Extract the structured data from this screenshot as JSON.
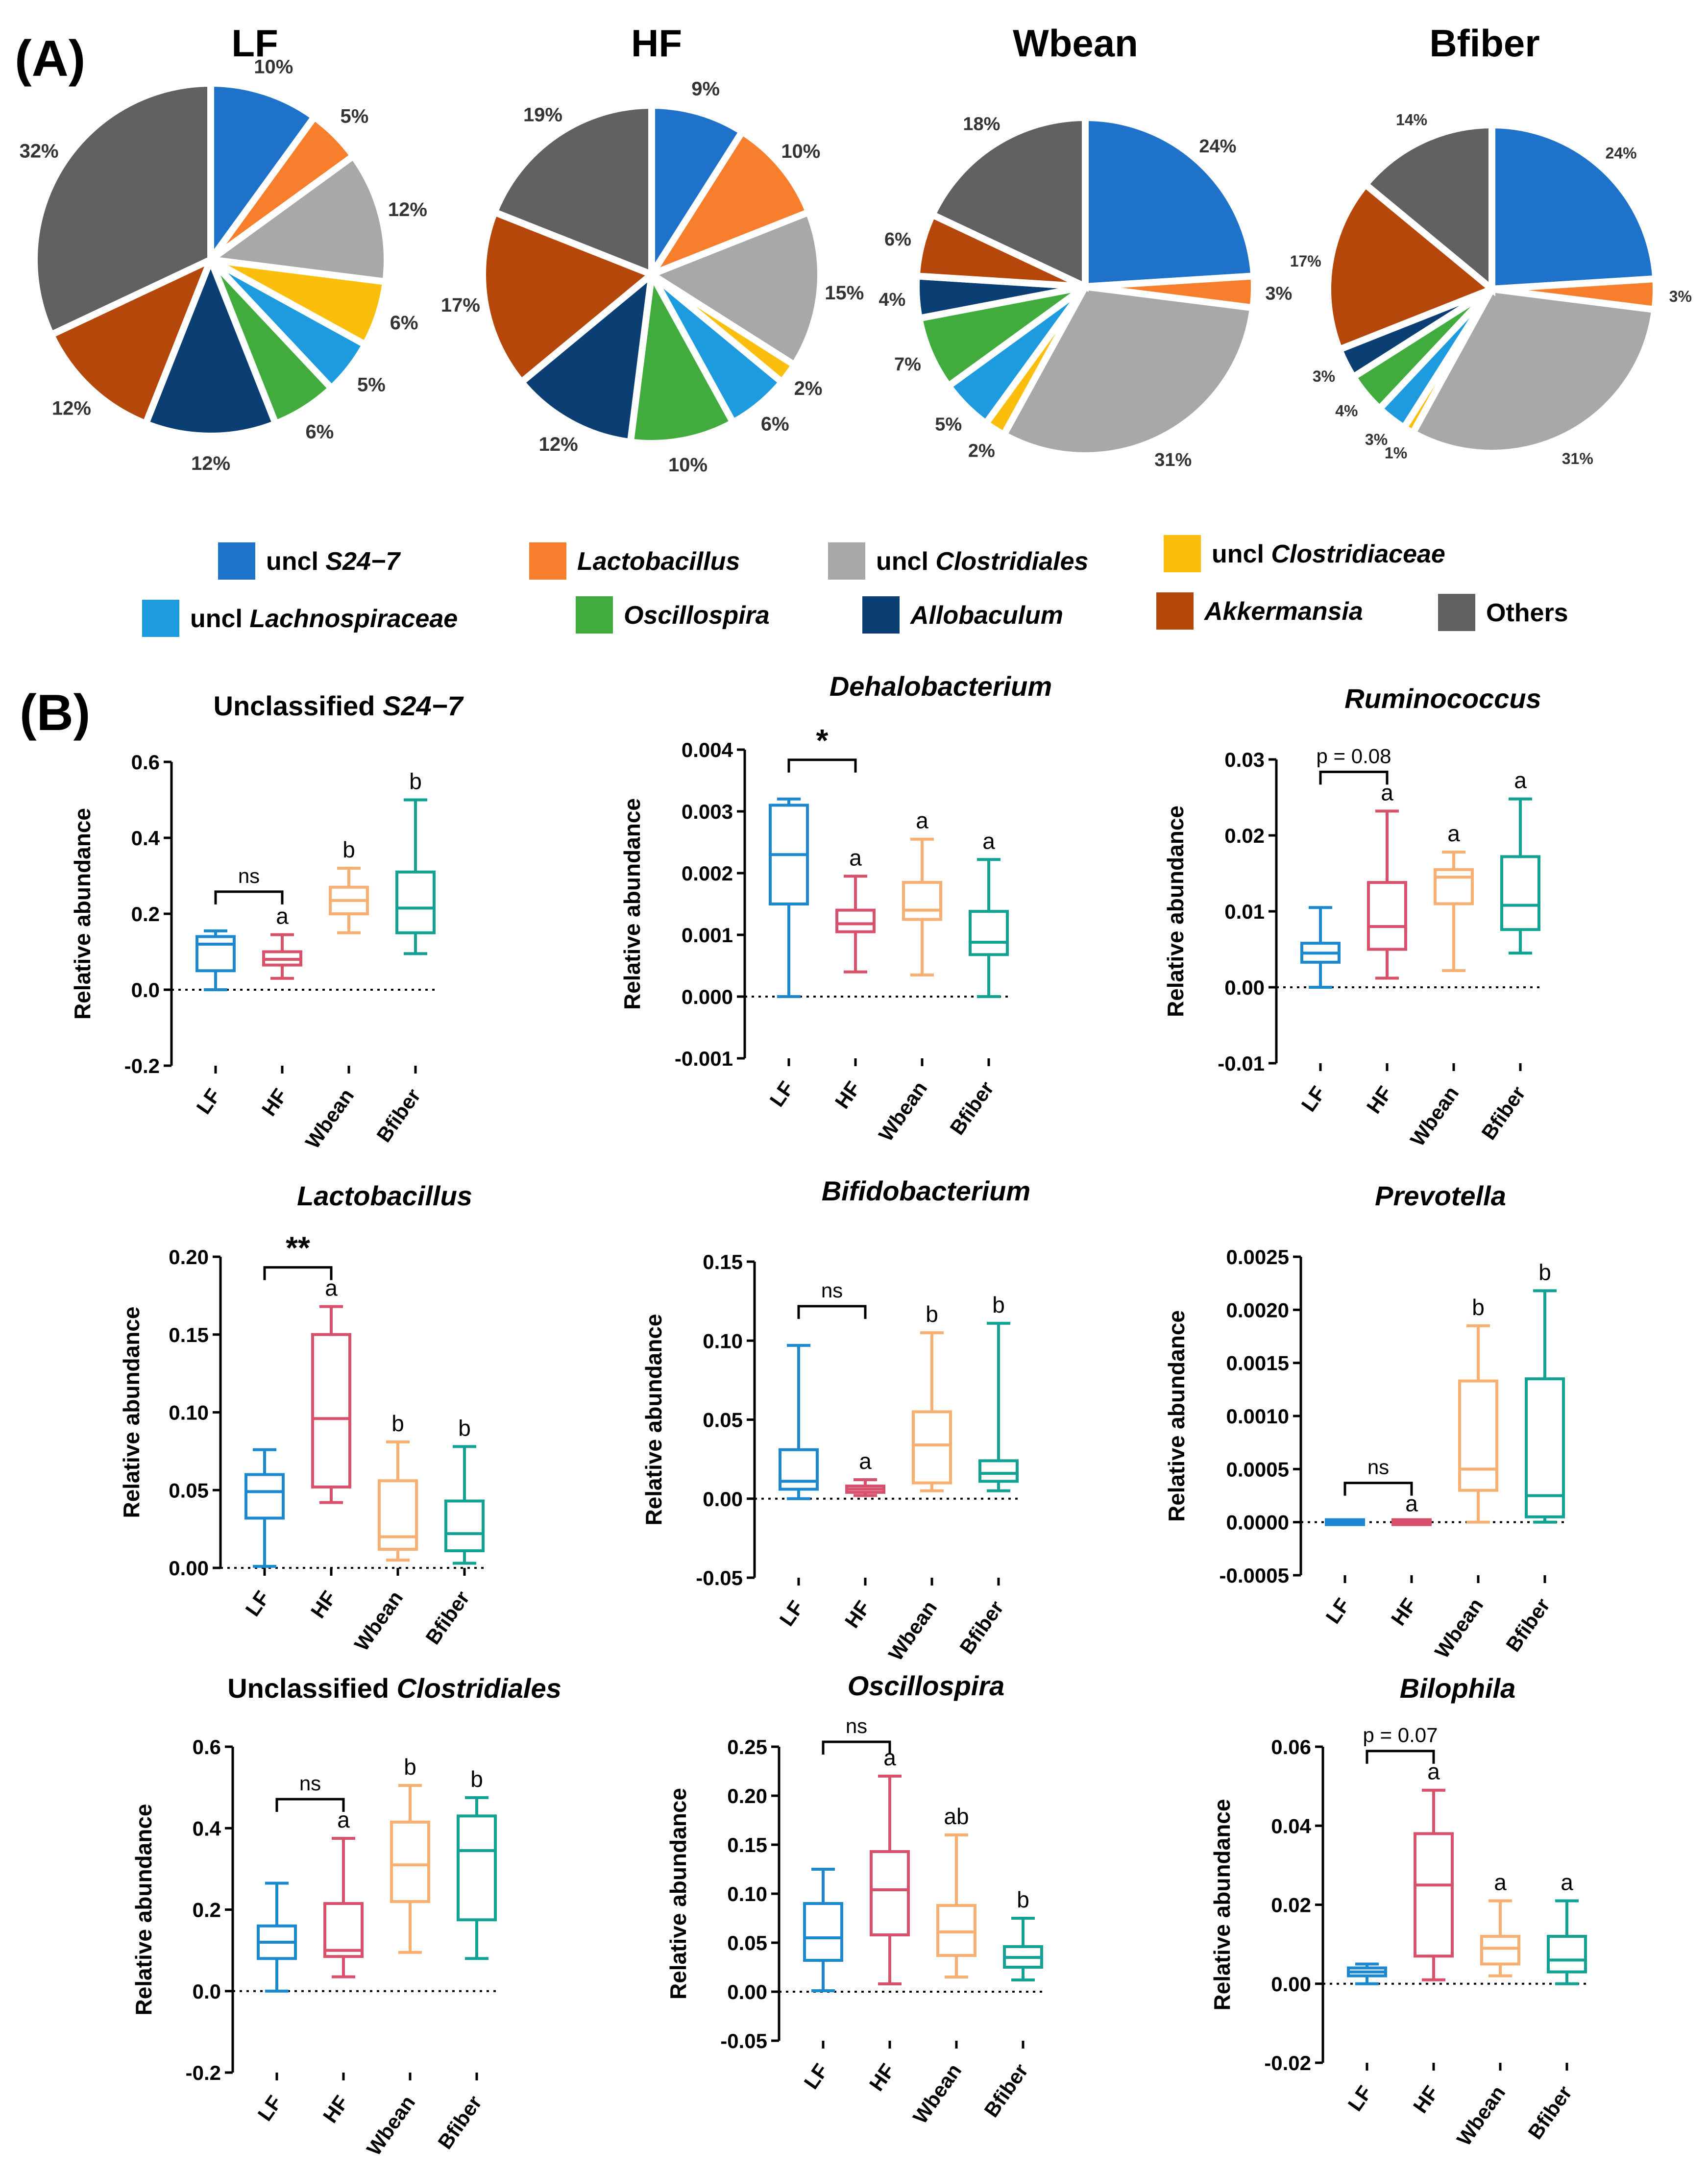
{
  "panel_labels": {
    "a": "(A)",
    "b": "(B)"
  },
  "legend": [
    {
      "pre": "uncl ",
      "name": "S24−7",
      "italic": true,
      "color": "#1F72CA"
    },
    {
      "pre": "",
      "name": "Lactobacillus",
      "italic": true,
      "color": "#F77E2D"
    },
    {
      "pre": "uncl ",
      "name": "Clostridiales",
      "italic": true,
      "color": "#A8A8A8"
    },
    {
      "pre": "uncl ",
      "name": "Clostridiaceae",
      "italic": true,
      "color": "#FCBE0C"
    },
    {
      "pre": "uncl ",
      "name": "Lachnospiraceae",
      "italic": true,
      "color": "#1E9ADE"
    },
    {
      "pre": "",
      "name": "Oscillospira",
      "italic": true,
      "color": "#41AB3E"
    },
    {
      "pre": "",
      "name": "Allobaculum",
      "italic": true,
      "color": "#0B3F74"
    },
    {
      "pre": "",
      "name": "Akkermansia",
      "italic": true,
      "color": "#B5470A"
    },
    {
      "pre": "",
      "name": "Others",
      "italic": false,
      "color": "#616161"
    }
  ],
  "chart_data": [
    {
      "type": "pie",
      "title": "LF",
      "categories": [
        "uncl S24−7",
        "Lactobacillus",
        "uncl Clostridiales",
        "uncl Clostridiaceae",
        "uncl Lachnospiraceae",
        "Oscillospira",
        "Allobaculum",
        "Akkermansia",
        "Others"
      ],
      "values": [
        10,
        5,
        12,
        6,
        5,
        6,
        12,
        12,
        32
      ],
      "labels": [
        "10%",
        "5%",
        "12%",
        "6%",
        "5%",
        "6%",
        "12%",
        "12%",
        "32%"
      ]
    },
    {
      "type": "pie",
      "title": "HF",
      "categories": [
        "uncl S24−7",
        "Lactobacillus",
        "uncl Clostridiales",
        "uncl Clostridiaceae",
        "uncl Lachnospiraceae",
        "Oscillospira",
        "Allobaculum",
        "Akkermansia",
        "Others"
      ],
      "values": [
        9,
        10,
        15,
        2,
        6,
        10,
        12,
        17,
        19
      ],
      "labels": [
        "9%",
        "10%",
        "15%",
        "2%",
        "6%",
        "10%",
        "12%",
        "17%",
        "19%"
      ]
    },
    {
      "type": "pie",
      "title": "Wbean",
      "categories": [
        "uncl S24−7",
        "Lactobacillus",
        "uncl Clostridiales",
        "uncl Clostridiaceae",
        "uncl Lachnospiraceae",
        "Oscillospira",
        "Allobaculum",
        "Akkermansia",
        "Others"
      ],
      "values": [
        24,
        3,
        31,
        2,
        5,
        7,
        4,
        6,
        18
      ],
      "labels": [
        "24%",
        "3%",
        "31%",
        "2%",
        "5%",
        "7%",
        "4%",
        "6%",
        "18%"
      ]
    },
    {
      "type": "pie",
      "title": "Bfiber",
      "categories": [
        "uncl S24−7",
        "Lactobacillus",
        "uncl Clostridiales",
        "uncl Clostridiaceae",
        "uncl Lachnospiraceae",
        "Oscillospira",
        "Allobaculum",
        "Akkermansia",
        "Others"
      ],
      "values": [
        24,
        3,
        31,
        1,
        3,
        4,
        3,
        17,
        14
      ],
      "labels": [
        "24%",
        "3%",
        "31%",
        "1%",
        "3%",
        "4%",
        "3%",
        "17%",
        "14%"
      ]
    },
    {
      "type": "box",
      "title_pre": "Unclassified ",
      "title_it": "S24−7",
      "ylabel": "Relative abundance",
      "categories": [
        "LF",
        "HF",
        "Wbean",
        "Bfiber"
      ],
      "ylim": [
        -0.2,
        0.6
      ],
      "yticks": [
        -0.2,
        0.0,
        0.2,
        0.4,
        0.6
      ],
      "ytick_labels": [
        "-0.2",
        "0.0",
        "0.2",
        "0.4",
        "0.6"
      ],
      "boxes": [
        {
          "min": 0.0,
          "q1": 0.05,
          "med": 0.12,
          "q3": 0.14,
          "max": 0.155
        },
        {
          "min": 0.03,
          "q1": 0.065,
          "med": 0.08,
          "q3": 0.1,
          "max": 0.145
        },
        {
          "min": 0.15,
          "q1": 0.2,
          "med": 0.235,
          "q3": 0.27,
          "max": 0.32
        },
        {
          "min": 0.095,
          "q1": 0.15,
          "med": 0.215,
          "q3": 0.31,
          "max": 0.5
        }
      ],
      "letters": [
        "",
        "a",
        "b",
        "b"
      ],
      "sig": "ns"
    },
    {
      "type": "box",
      "title_pre": "",
      "title_it": "Dehalobacterium",
      "ylabel": "Relative abundance",
      "categories": [
        "LF",
        "HF",
        "Wbean",
        "Bfiber"
      ],
      "ylim": [
        -0.001,
        0.004
      ],
      "yticks": [
        -0.001,
        0,
        0.001,
        0.002,
        0.003,
        0.004
      ],
      "ytick_labels": [
        "-0.001",
        "0.000",
        "0.001",
        "0.002",
        "0.003",
        "0.004"
      ],
      "boxes": [
        {
          "min": 0.0,
          "q1": 0.0015,
          "med": 0.0023,
          "q3": 0.0031,
          "max": 0.0032
        },
        {
          "min": 0.0004,
          "q1": 0.00105,
          "med": 0.00118,
          "q3": 0.0014,
          "max": 0.00195
        },
        {
          "min": 0.00035,
          "q1": 0.00125,
          "med": 0.0014,
          "q3": 0.00185,
          "max": 0.00255
        },
        {
          "min": 0.0,
          "q1": 0.00068,
          "med": 0.00088,
          "q3": 0.00138,
          "max": 0.00222
        }
      ],
      "letters": [
        "",
        "a",
        "a",
        "a"
      ],
      "sig": "*"
    },
    {
      "type": "box",
      "title_pre": "",
      "title_it": "Ruminococcus",
      "ylabel": "Relative abundance",
      "categories": [
        "LF",
        "HF",
        "Wbean",
        "Bfiber"
      ],
      "ylim": [
        -0.01,
        0.03
      ],
      "yticks": [
        -0.01,
        0,
        0.01,
        0.02,
        0.03
      ],
      "ytick_labels": [
        "-0.01",
        "0.00",
        "0.01",
        "0.02",
        "0.03"
      ],
      "boxes": [
        {
          "min": 0.0,
          "q1": 0.0033,
          "med": 0.0045,
          "q3": 0.0058,
          "max": 0.0105
        },
        {
          "min": 0.0012,
          "q1": 0.005,
          "med": 0.008,
          "q3": 0.0138,
          "max": 0.0232
        },
        {
          "min": 0.0022,
          "q1": 0.011,
          "med": 0.0145,
          "q3": 0.0155,
          "max": 0.0178
        },
        {
          "min": 0.0045,
          "q1": 0.0076,
          "med": 0.0108,
          "q3": 0.0172,
          "max": 0.0248
        }
      ],
      "letters": [
        "",
        "a",
        "a",
        "a"
      ],
      "sig": "p = 0.08"
    },
    {
      "type": "box",
      "title_pre": "",
      "title_it": "Lactobacillus",
      "ylabel": "Relative abundance",
      "categories": [
        "LF",
        "HF",
        "Wbean",
        "Bfiber"
      ],
      "ylim": [
        0,
        0.2
      ],
      "yticks": [
        0,
        0.05,
        0.1,
        0.15,
        0.2
      ],
      "ytick_labels": [
        "0.00",
        "0.05",
        "0.10",
        "0.15",
        "0.20"
      ],
      "boxes": [
        {
          "min": 0.001,
          "q1": 0.032,
          "med": 0.049,
          "q3": 0.06,
          "max": 0.076
        },
        {
          "min": 0.042,
          "q1": 0.052,
          "med": 0.096,
          "q3": 0.15,
          "max": 0.168
        },
        {
          "min": 0.005,
          "q1": 0.012,
          "med": 0.02,
          "q3": 0.056,
          "max": 0.081
        },
        {
          "min": 0.003,
          "q1": 0.011,
          "med": 0.022,
          "q3": 0.043,
          "max": 0.078
        }
      ],
      "letters": [
        "",
        "a",
        "b",
        "b"
      ],
      "sig": "**"
    },
    {
      "type": "box",
      "title_pre": "",
      "title_it": "Bifidobacterium",
      "ylabel": "Relative abundance",
      "categories": [
        "LF",
        "HF",
        "Wbean",
        "Bfiber"
      ],
      "ylim": [
        -0.05,
        0.15
      ],
      "yticks": [
        -0.05,
        0,
        0.05,
        0.1,
        0.15
      ],
      "ytick_labels": [
        "-0.05",
        "0.00",
        "0.05",
        "0.10",
        "0.15"
      ],
      "boxes": [
        {
          "min": 0.0,
          "q1": 0.006,
          "med": 0.011,
          "q3": 0.031,
          "max": 0.097
        },
        {
          "min": 0.002,
          "q1": 0.004,
          "med": 0.006,
          "q3": 0.008,
          "max": 0.012
        },
        {
          "min": 0.005,
          "q1": 0.01,
          "med": 0.034,
          "q3": 0.055,
          "max": 0.105
        },
        {
          "min": 0.005,
          "q1": 0.011,
          "med": 0.016,
          "q3": 0.024,
          "max": 0.111
        }
      ],
      "letters": [
        "",
        "a",
        "b",
        "b"
      ],
      "sig": "ns"
    },
    {
      "type": "box",
      "title_pre": "",
      "title_it": "Prevotella",
      "ylabel": "Relative abundance",
      "categories": [
        "LF",
        "HF",
        "Wbean",
        "Bfiber"
      ],
      "ylim": [
        -0.0005,
        0.0025
      ],
      "yticks": [
        -0.0005,
        0,
        0.0005,
        0.001,
        0.0015,
        0.002,
        0.0025
      ],
      "ytick_labels": [
        "-0.0005",
        "0.0000",
        "0.0005",
        "0.0010",
        "0.0015",
        "0.0020",
        "0.0025"
      ],
      "boxes": [
        {
          "min": 0.0,
          "q1": 0.0,
          "med": 0.0,
          "q3": 0.0,
          "max": 0.0
        },
        {
          "min": 0.0,
          "q1": 0.0,
          "med": 0.0,
          "q3": 0.0,
          "max": 0.0
        },
        {
          "min": 0.0,
          "q1": 0.0003,
          "med": 0.0005,
          "q3": 0.00133,
          "max": 0.00185
        },
        {
          "min": 0.0,
          "q1": 5e-05,
          "med": 0.00025,
          "q3": 0.00135,
          "max": 0.00218
        }
      ],
      "letters": [
        "",
        "a",
        "b",
        "b"
      ],
      "sig": "ns"
    },
    {
      "type": "box",
      "title_pre": "Unclassified ",
      "title_it": "Clostridiales",
      "ylabel": "Relative abundance",
      "categories": [
        "LF",
        "HF",
        "Wbean",
        "Bfiber"
      ],
      "ylim": [
        -0.2,
        0.6
      ],
      "yticks": [
        -0.2,
        0.0,
        0.2,
        0.4,
        0.6
      ],
      "ytick_labels": [
        "-0.2",
        "0.0",
        "0.2",
        "0.4",
        "0.6"
      ],
      "boxes": [
        {
          "min": 0.0,
          "q1": 0.08,
          "med": 0.12,
          "q3": 0.16,
          "max": 0.265
        },
        {
          "min": 0.035,
          "q1": 0.085,
          "med": 0.1,
          "q3": 0.215,
          "max": 0.375
        },
        {
          "min": 0.095,
          "q1": 0.22,
          "med": 0.31,
          "q3": 0.415,
          "max": 0.505
        },
        {
          "min": 0.08,
          "q1": 0.175,
          "med": 0.345,
          "q3": 0.43,
          "max": 0.475
        }
      ],
      "letters": [
        "",
        "a",
        "b",
        "b"
      ],
      "sig": "ns"
    },
    {
      "type": "box",
      "title_pre": "",
      "title_it": "Oscillospira",
      "ylabel": "Relative abundance",
      "categories": [
        "LF",
        "HF",
        "Wbean",
        "Bfiber"
      ],
      "ylim": [
        -0.05,
        0.25
      ],
      "yticks": [
        -0.05,
        0,
        0.05,
        0.1,
        0.15,
        0.2,
        0.25
      ],
      "ytick_labels": [
        "-0.05",
        "0.00",
        "0.05",
        "0.10",
        "0.15",
        "0.20",
        "0.25"
      ],
      "boxes": [
        {
          "min": 0.001,
          "q1": 0.032,
          "med": 0.055,
          "q3": 0.09,
          "max": 0.125
        },
        {
          "min": 0.008,
          "q1": 0.058,
          "med": 0.104,
          "q3": 0.143,
          "max": 0.22
        },
        {
          "min": 0.015,
          "q1": 0.037,
          "med": 0.061,
          "q3": 0.088,
          "max": 0.16
        },
        {
          "min": 0.012,
          "q1": 0.025,
          "med": 0.035,
          "q3": 0.046,
          "max": 0.075
        }
      ],
      "letters": [
        "",
        "a",
        "ab",
        "b"
      ],
      "sig": "ns"
    },
    {
      "type": "box",
      "title_pre": "",
      "title_it": "Bilophila",
      "ylabel": "Relative abundance",
      "categories": [
        "LF",
        "HF",
        "Wbean",
        "Bfiber"
      ],
      "ylim": [
        -0.02,
        0.06
      ],
      "yticks": [
        -0.02,
        0,
        0.02,
        0.04,
        0.06
      ],
      "ytick_labels": [
        "-0.02",
        "0.00",
        "0.02",
        "0.04",
        "0.06"
      ],
      "boxes": [
        {
          "min": 0.0,
          "q1": 0.002,
          "med": 0.003,
          "q3": 0.004,
          "max": 0.005
        },
        {
          "min": 0.001,
          "q1": 0.007,
          "med": 0.025,
          "q3": 0.038,
          "max": 0.049
        },
        {
          "min": 0.002,
          "q1": 0.005,
          "med": 0.009,
          "q3": 0.012,
          "max": 0.021
        },
        {
          "min": 0.0,
          "q1": 0.003,
          "med": 0.006,
          "q3": 0.012,
          "max": 0.021
        }
      ],
      "letters": [
        "",
        "a",
        "a",
        "a"
      ],
      "sig": "p = 0.07"
    }
  ],
  "group_colors": [
    "#1B88D0",
    "#D9506A",
    "#F7AF72",
    "#12A294"
  ]
}
